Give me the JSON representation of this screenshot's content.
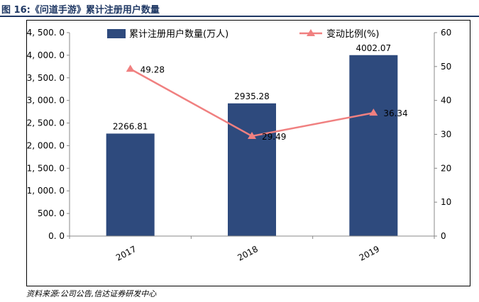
{
  "figure": {
    "title": "图 16:《问道手游》累计注册用户数量",
    "source": "资料来源:公司公告,信达证券研发中心"
  },
  "colors": {
    "bar": "#2e4a7d",
    "line": "#f08080",
    "title": "#1f3864"
  },
  "chart_data": {
    "type": "bar",
    "categories": [
      "2017",
      "2018",
      "2019"
    ],
    "series": [
      {
        "name": "累计注册用户数量(万人)",
        "type": "bar",
        "axis": "left",
        "values": [
          2266.81,
          2935.28,
          4002.07
        ],
        "labels": [
          "2266.81",
          "2935.28",
          "4002.07"
        ]
      },
      {
        "name": "变动比例(%)",
        "type": "line",
        "axis": "right",
        "values": [
          49.28,
          29.49,
          36.34
        ],
        "labels": [
          "49.28",
          "29.49",
          "36.34"
        ]
      }
    ],
    "left_axis": {
      "range": [
        0,
        4500
      ],
      "ticks": [
        0,
        500,
        1000,
        1500,
        2000,
        2500,
        3000,
        3500,
        4000,
        4500
      ],
      "tick_labels": [
        "0. 0",
        "500. 0",
        "1, 000. 0",
        "1, 500. 0",
        "2, 000. 0",
        "2, 500. 0",
        "3, 000. 0",
        "3, 500. 0",
        "4, 000. 0",
        "4, 500. 0"
      ]
    },
    "right_axis": {
      "range": [
        0,
        60
      ],
      "ticks": [
        0,
        10,
        20,
        30,
        40,
        50,
        60
      ],
      "tick_labels": [
        "0",
        "10",
        "20",
        "30",
        "40",
        "50",
        "60"
      ]
    },
    "legend_position": "top-center",
    "grid": false
  }
}
